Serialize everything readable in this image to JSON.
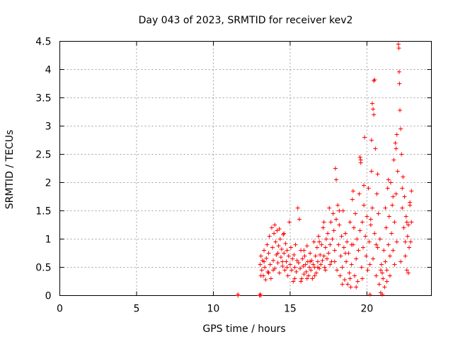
{
  "chart_data": {
    "type": "scatter",
    "title": "Day 043 of 2023, SRMTID for receiver kev2",
    "xlabel": "GPS time / hours",
    "ylabel": "SRMTID / TECUs",
    "xlim": [
      0,
      24.2
    ],
    "ylim": [
      0,
      4.5
    ],
    "xticks": [
      0,
      5,
      10,
      15,
      20
    ],
    "yticks": [
      0,
      0.5,
      1,
      1.5,
      2,
      2.5,
      3,
      3.5,
      4,
      4.5
    ],
    "xtick_labels": [
      "0",
      "5",
      "10",
      "15",
      "20"
    ],
    "ytick_labels": [
      "0",
      "0.5",
      "1",
      "1.5",
      "2",
      "2.5",
      "3",
      "3.5",
      "4",
      "4.5"
    ],
    "grid": true,
    "marker": "+",
    "color": "#ff0000",
    "series": [
      {
        "name": "kev2",
        "points": [
          [
            11.6,
            0.0
          ],
          [
            11.6,
            0.02
          ],
          [
            13.0,
            0.0
          ],
          [
            13.05,
            0.02
          ],
          [
            13.1,
            0.0
          ],
          [
            13.05,
            0.55
          ],
          [
            13.1,
            0.7
          ],
          [
            13.15,
            0.45
          ],
          [
            13.2,
            0.62
          ],
          [
            13.25,
            0.35
          ],
          [
            13.3,
            0.8
          ],
          [
            13.35,
            0.5
          ],
          [
            13.4,
            0.28
          ],
          [
            13.45,
            0.66
          ],
          [
            13.5,
            0.9
          ],
          [
            13.55,
            0.42
          ],
          [
            13.6,
            0.75
          ],
          [
            13.65,
            1.05
          ],
          [
            13.7,
            0.55
          ],
          [
            13.75,
            0.3
          ],
          [
            13.8,
            1.2
          ],
          [
            13.85,
            0.85
          ],
          [
            13.9,
            0.62
          ],
          [
            13.95,
            1.1
          ],
          [
            14.0,
            0.48
          ],
          [
            14.05,
            0.95
          ],
          [
            14.1,
            0.72
          ],
          [
            14.15,
            1.15
          ],
          [
            14.2,
            0.58
          ],
          [
            14.25,
            0.88
          ],
          [
            14.3,
            0.4
          ],
          [
            14.35,
            1.0
          ],
          [
            14.4,
            0.68
          ],
          [
            14.45,
            0.82
          ],
          [
            14.5,
            0.52
          ],
          [
            14.55,
            1.08
          ],
          [
            14.6,
            0.75
          ],
          [
            14.65,
            0.45
          ],
          [
            14.7,
            0.92
          ],
          [
            14.75,
            0.6
          ],
          [
            14.8,
            0.8
          ],
          [
            14.85,
            0.35
          ],
          [
            14.9,
            0.7
          ],
          [
            14.95,
            1.3
          ],
          [
            15.0,
            0.55
          ],
          [
            15.05,
            0.85
          ],
          [
            15.1,
            0.45
          ],
          [
            15.15,
            0.65
          ],
          [
            15.2,
            0.25
          ],
          [
            15.25,
            0.72
          ],
          [
            15.3,
            0.5
          ],
          [
            15.35,
            0.9
          ],
          [
            15.4,
            0.42
          ],
          [
            15.45,
            0.62
          ],
          [
            15.5,
            1.55
          ],
          [
            15.55,
            0.58
          ],
          [
            15.6,
            1.35
          ],
          [
            15.65,
            0.48
          ],
          [
            15.7,
            0.8
          ],
          [
            15.75,
            0.3
          ],
          [
            15.8,
            0.65
          ],
          [
            15.85,
            0.52
          ],
          [
            15.9,
            0.38
          ],
          [
            15.95,
            0.7
          ],
          [
            16.0,
            0.55
          ],
          [
            16.05,
            0.42
          ],
          [
            16.1,
            0.88
          ],
          [
            16.15,
            0.6
          ],
          [
            16.2,
            0.35
          ],
          [
            16.25,
            0.5
          ],
          [
            16.3,
            0.75
          ],
          [
            16.35,
            0.45
          ],
          [
            16.4,
            0.62
          ],
          [
            16.45,
            0.3
          ],
          [
            16.5,
            0.55
          ],
          [
            16.55,
            0.95
          ],
          [
            16.6,
            0.5
          ],
          [
            16.65,
            0.7
          ],
          [
            16.7,
            0.4
          ],
          [
            16.75,
            0.85
          ],
          [
            16.8,
            0.6
          ],
          [
            16.85,
            1.05
          ],
          [
            16.9,
            0.48
          ],
          [
            16.95,
            0.72
          ],
          [
            17.0,
            0.55
          ],
          [
            17.05,
            0.9
          ],
          [
            17.1,
            0.62
          ],
          [
            17.15,
            1.2
          ],
          [
            17.2,
            0.7
          ],
          [
            17.25,
            0.5
          ],
          [
            17.3,
            0.85
          ],
          [
            17.35,
            1.0
          ],
          [
            17.4,
            0.65
          ],
          [
            17.45,
            1.1
          ],
          [
            17.5,
            0.75
          ],
          [
            17.55,
            1.55
          ],
          [
            17.6,
            0.9
          ],
          [
            17.65,
            1.3
          ],
          [
            17.7,
            0.6
          ],
          [
            17.75,
            1.0
          ],
          [
            17.8,
            1.45
          ],
          [
            17.85,
            1.15
          ],
          [
            17.9,
            0.8
          ],
          [
            17.95,
            2.25
          ],
          [
            18.0,
            1.35
          ],
          [
            18.05,
            0.45
          ],
          [
            18.1,
            1.6
          ],
          [
            18.15,
            0.9
          ],
          [
            18.2,
            1.25
          ],
          [
            18.25,
            0.35
          ],
          [
            18.3,
            0.7
          ],
          [
            18.35,
            1.05
          ],
          [
            18.4,
            0.5
          ],
          [
            18.45,
            1.5
          ],
          [
            18.5,
            0.85
          ],
          [
            18.55,
            0.28
          ],
          [
            18.6,
            1.1
          ],
          [
            18.65,
            0.6
          ],
          [
            18.7,
            0.95
          ],
          [
            18.75,
            0.2
          ],
          [
            18.8,
            0.75
          ],
          [
            18.85,
            0.4
          ],
          [
            18.9,
            1.3
          ],
          [
            18.95,
            0.15
          ],
          [
            19.0,
            0.55
          ],
          [
            19.05,
            1.7
          ],
          [
            19.1,
            0.9
          ],
          [
            19.15,
            1.2
          ],
          [
            19.2,
            0.35
          ],
          [
            19.25,
            1.45
          ],
          [
            19.3,
            0.65
          ],
          [
            19.35,
            1.0
          ],
          [
            19.4,
            0.25
          ],
          [
            19.45,
            0.8
          ],
          [
            19.5,
            1.8
          ],
          [
            19.55,
            1.15
          ],
          [
            19.6,
            2.4
          ],
          [
            19.65,
            0.5
          ],
          [
            19.7,
            1.3
          ],
          [
            19.75,
            0.85
          ],
          [
            19.8,
            1.6
          ],
          [
            19.85,
            2.8
          ],
          [
            19.9,
            1.05
          ],
          [
            19.95,
            0.7
          ],
          [
            20.0,
            1.4
          ],
          [
            20.05,
            0.45
          ],
          [
            20.1,
            1.9
          ],
          [
            20.15,
            0.95
          ],
          [
            20.2,
            0.02
          ],
          [
            20.25,
            1.25
          ],
          [
            20.3,
            2.2
          ],
          [
            20.35,
            1.55
          ],
          [
            20.4,
            0.65
          ],
          [
            20.45,
            3.8
          ],
          [
            20.5,
            1.1
          ],
          [
            20.55,
            2.6
          ],
          [
            20.6,
            0.35
          ],
          [
            20.65,
            1.8
          ],
          [
            20.7,
            0.85
          ],
          [
            20.75,
            1.45
          ],
          [
            20.8,
            0.2
          ],
          [
            20.85,
            1.0
          ],
          [
            20.9,
            0.05
          ],
          [
            20.95,
            0.55
          ],
          [
            21.0,
            0.02
          ],
          [
            21.05,
            0.3
          ],
          [
            21.1,
            0.8
          ],
          [
            21.15,
            0.15
          ],
          [
            21.2,
            0.6
          ],
          [
            21.25,
            1.2
          ],
          [
            21.3,
            0.45
          ],
          [
            21.35,
            1.9
          ],
          [
            21.4,
            0.9
          ],
          [
            21.45,
            1.4
          ],
          [
            21.5,
            0.7
          ],
          [
            21.55,
            2.0
          ],
          [
            21.6,
            1.1
          ],
          [
            21.65,
            1.6
          ],
          [
            21.7,
            0.8
          ],
          [
            21.75,
            2.4
          ],
          [
            21.8,
            1.3
          ],
          [
            21.85,
            2.7
          ],
          [
            21.9,
            1.8
          ],
          [
            21.95,
            0.95
          ],
          [
            22.0,
            2.2
          ],
          [
            22.05,
            4.45
          ],
          [
            22.08,
            4.38
          ],
          [
            22.1,
            3.96
          ],
          [
            22.12,
            3.75
          ],
          [
            22.15,
            3.28
          ],
          [
            22.2,
            2.95
          ],
          [
            22.25,
            2.5
          ],
          [
            22.3,
            1.55
          ],
          [
            22.35,
            2.1
          ],
          [
            22.4,
            1.2
          ],
          [
            22.45,
            1.75
          ],
          [
            22.5,
            0.7
          ],
          [
            22.55,
            1.4
          ],
          [
            22.6,
            0.45
          ],
          [
            22.65,
            1.05
          ],
          [
            22.7,
            0.4
          ],
          [
            22.75,
            0.85
          ],
          [
            22.8,
            1.65
          ],
          [
            22.85,
            0.95
          ],
          [
            22.9,
            1.85
          ],
          [
            20.35,
            3.4
          ],
          [
            20.4,
            3.3
          ],
          [
            20.45,
            3.2
          ],
          [
            20.5,
            3.82
          ],
          [
            20.3,
            2.75
          ],
          [
            21.9,
            2.6
          ],
          [
            21.95,
            2.85
          ],
          [
            19.55,
            2.45
          ],
          [
            19.6,
            2.35
          ],
          [
            20.25,
            1.35
          ],
          [
            14.0,
            1.25
          ],
          [
            14.3,
            1.18
          ],
          [
            14.6,
            1.1
          ],
          [
            16.9,
            0.95
          ],
          [
            17.2,
            1.3
          ],
          [
            18.0,
            2.05
          ],
          [
            18.2,
            1.5
          ],
          [
            19.1,
            1.85
          ],
          [
            19.8,
            1.95
          ],
          [
            20.7,
            2.15
          ],
          [
            21.2,
            1.55
          ],
          [
            21.4,
            2.05
          ],
          [
            21.7,
            1.75
          ],
          [
            22.3,
            1.9
          ],
          [
            22.6,
            1.3
          ],
          [
            22.8,
            1.6
          ],
          [
            22.9,
            1.3
          ],
          [
            21.0,
            0.4
          ],
          [
            20.9,
            0.45
          ],
          [
            20.2,
            0.55
          ],
          [
            19.3,
            0.15
          ],
          [
            18.9,
            0.3
          ],
          [
            18.4,
            0.2
          ],
          [
            17.9,
            0.6
          ],
          [
            17.6,
            0.55
          ],
          [
            17.3,
            0.45
          ],
          [
            16.6,
            0.35
          ],
          [
            16.1,
            0.3
          ],
          [
            15.7,
            0.25
          ],
          [
            15.3,
            0.3
          ],
          [
            14.8,
            0.5
          ],
          [
            14.5,
            0.6
          ],
          [
            14.2,
            0.75
          ],
          [
            13.9,
            0.45
          ],
          [
            13.6,
            0.4
          ],
          [
            13.3,
            0.6
          ],
          [
            13.1,
            0.35
          ],
          [
            15.9,
            0.8
          ],
          [
            16.3,
            0.6
          ],
          [
            16.8,
            0.5
          ],
          [
            18.6,
            0.75
          ],
          [
            19.0,
            0.9
          ],
          [
            19.7,
            0.3
          ],
          [
            20.6,
            0.9
          ],
          [
            21.3,
            0.25
          ],
          [
            22.2,
            0.6
          ],
          [
            22.5,
            0.95
          ],
          [
            22.7,
            1.25
          ],
          [
            21.8,
            0.55
          ],
          [
            21.5,
            0.35
          ]
        ]
      }
    ]
  }
}
